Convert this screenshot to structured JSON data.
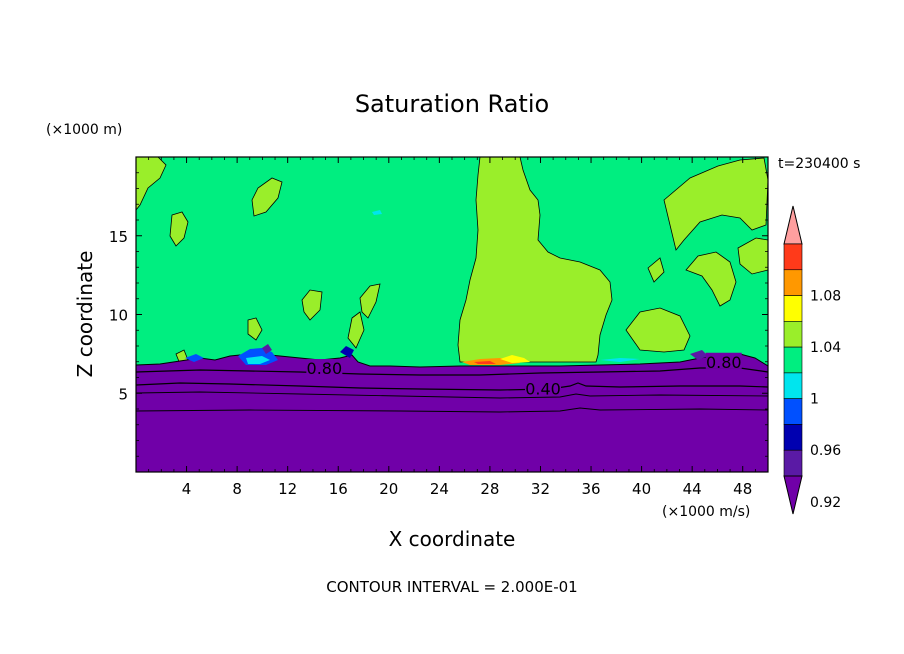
{
  "chart_data": {
    "type": "heatmap",
    "title": "Saturation Ratio",
    "time_label": "t=230400 s",
    "xlabel": "X coordinate",
    "ylabel": "Z coordinate",
    "x_unit": "(×1000 m/s)",
    "y_unit": "(×1000 m)",
    "footer": "CONTOUR INTERVAL = 2.000E-01",
    "xlim": [
      0,
      50
    ],
    "ylim": [
      0,
      20
    ],
    "x_ticks": [
      4,
      8,
      12,
      16,
      20,
      24,
      28,
      32,
      36,
      40,
      44,
      48
    ],
    "y_ticks": [
      5,
      10,
      15
    ],
    "contour_labels": [
      {
        "text": "0.80",
        "x": 14.9,
        "z": 6.6
      },
      {
        "text": "0.40",
        "x": 32.2,
        "z": 5.3
      },
      {
        "text": "0.80",
        "x": 46.5,
        "z": 7.0
      }
    ],
    "colorbar": {
      "labels": [
        "1.08",
        "1.04",
        "1",
        "0.96",
        "0.92"
      ],
      "colors": [
        "#ff9f9f",
        "#ff3a1a",
        "#ff9800",
        "#ffff00",
        "#9aee2a",
        "#00ee80",
        "#00e5ee",
        "#0050ff",
        "#0000b0",
        "#5a1aa5",
        "#7000a8"
      ],
      "extend": "both"
    },
    "field": {
      "moist_layer_color": "#00ee80",
      "saturated_color": "#9aee2a",
      "dry_layer_color": "#7000a8",
      "top_of_dry_layer_km": 6.8
    }
  }
}
